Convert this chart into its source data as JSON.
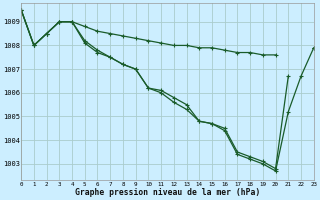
{
  "xlabel": "Graphe pression niveau de la mer (hPa)",
  "background_color": "#cceeff",
  "grid_color": "#aacccc",
  "line_color": "#1a5c2a",
  "xlim": [
    0,
    23
  ],
  "ylim": [
    1002.3,
    1009.8
  ],
  "yticks": [
    1003,
    1004,
    1005,
    1006,
    1007,
    1008,
    1009
  ],
  "xticks": [
    0,
    1,
    2,
    3,
    4,
    5,
    6,
    7,
    8,
    9,
    10,
    11,
    12,
    13,
    14,
    15,
    16,
    17,
    18,
    19,
    20,
    21,
    22,
    23
  ],
  "s1": [
    1009.5,
    1008.0,
    1008.5,
    1009.0,
    1009.0,
    1008.8,
    1008.6,
    1008.5,
    1008.4,
    1008.3,
    1008.2,
    1008.1,
    1008.0,
    1008.0,
    1007.9,
    1007.9,
    1007.8,
    1007.7,
    1007.7,
    1007.6,
    1007.6,
    null,
    null,
    1007.9
  ],
  "s2": [
    1009.5,
    1008.0,
    1008.5,
    1009.0,
    1009.0,
    1008.2,
    1007.8,
    1007.5,
    1007.2,
    1007.0,
    1006.2,
    1006.1,
    1005.8,
    1005.5,
    1004.8,
    1004.7,
    1004.5,
    1003.5,
    1003.3,
    1003.1,
    1002.8,
    1006.7,
    null,
    1007.9
  ],
  "s3": [
    1009.5,
    1008.0,
    1008.5,
    1009.0,
    1009.0,
    1008.1,
    1007.7,
    1007.5,
    1007.2,
    1007.0,
    1006.2,
    1006.0,
    1005.6,
    1005.3,
    1004.8,
    1004.7,
    1004.4,
    1003.4,
    1003.2,
    1003.0,
    1002.7,
    1005.2,
    1006.7,
    1007.9
  ]
}
